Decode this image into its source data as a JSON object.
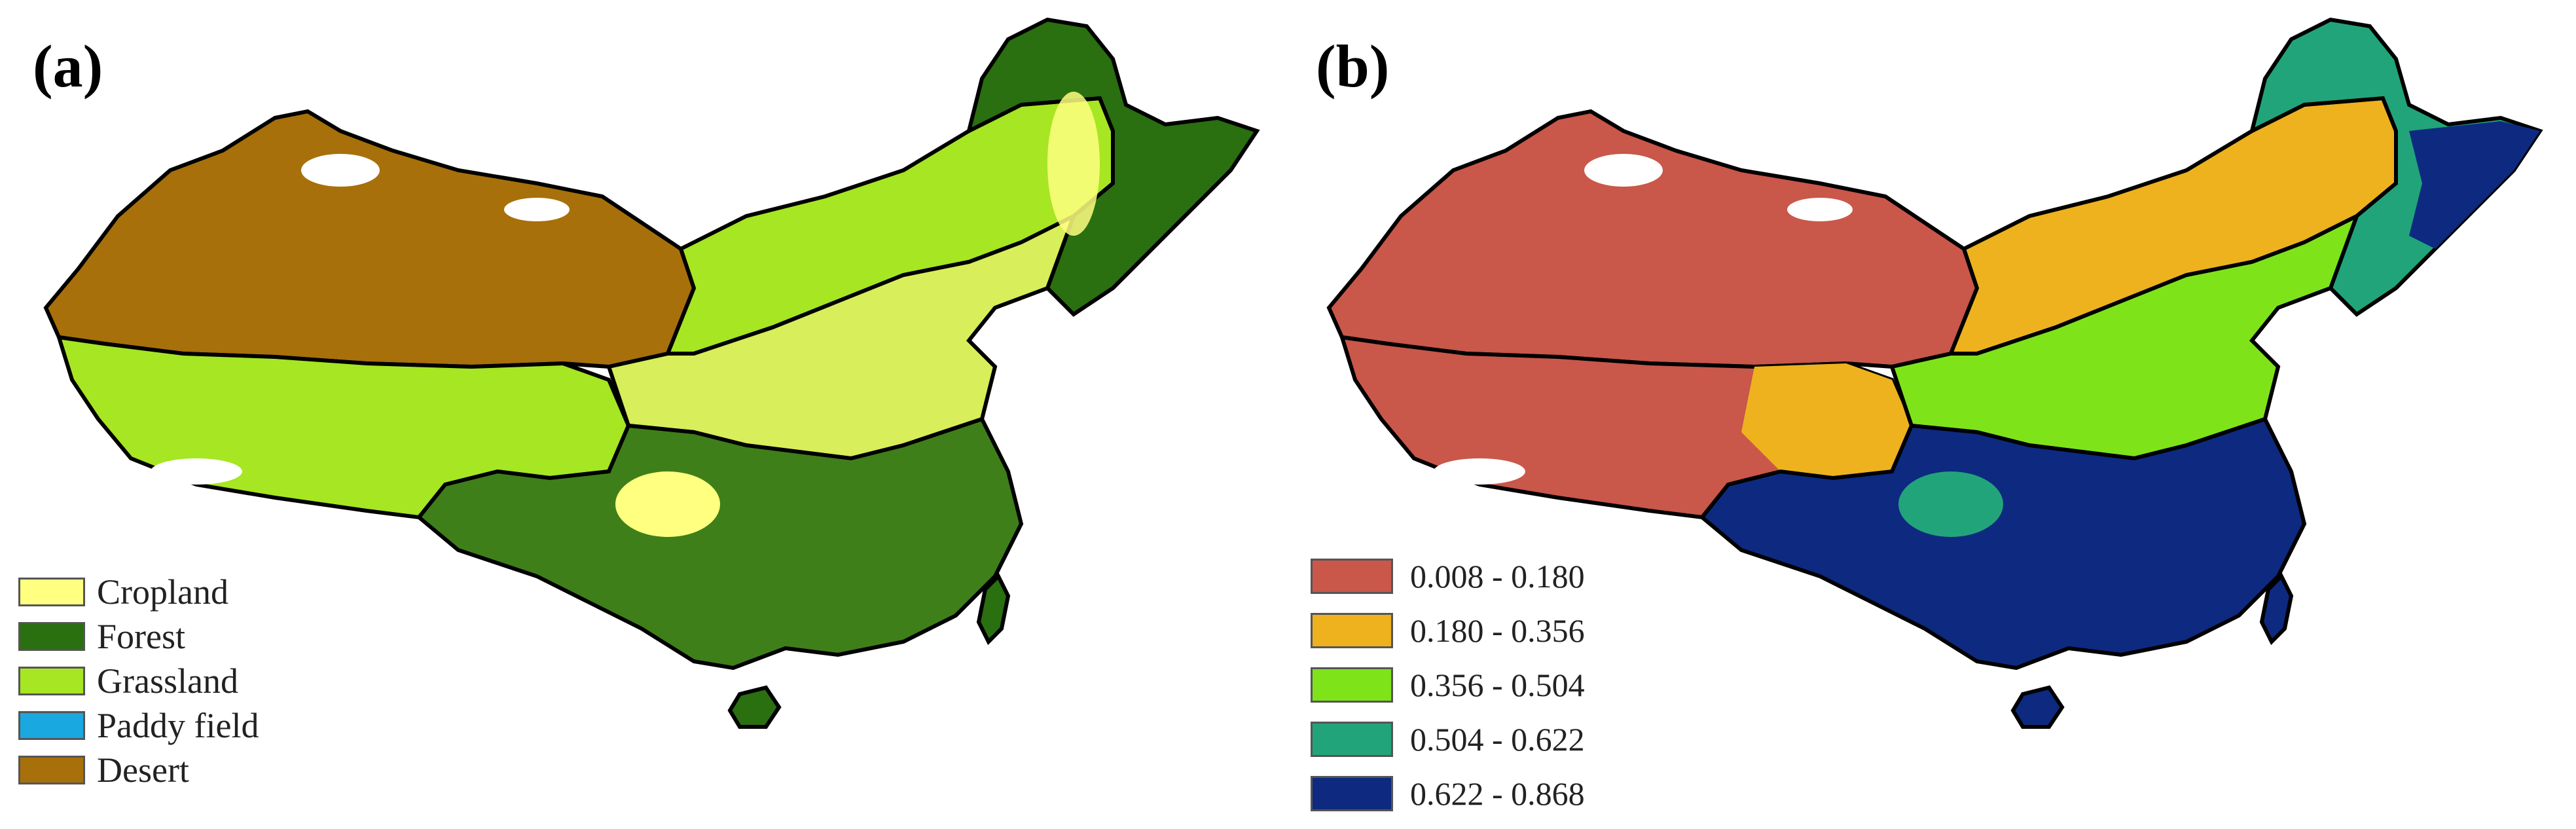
{
  "panels": [
    {
      "label": "(a)",
      "legend": [
        {
          "label": "Cropland",
          "color": "#ffff80"
        },
        {
          "label": "Forest",
          "color": "#2a6f10"
        },
        {
          "label": "Grassland",
          "color": "#a6e622"
        },
        {
          "label": "Paddy field",
          "color": "#1aa8e0"
        },
        {
          "label": "Desert",
          "color": "#a8700a"
        }
      ]
    },
    {
      "label": "(b)",
      "legend": [
        {
          "label": "0.008 - 0.180",
          "color": "#c9574a"
        },
        {
          "label": "0.180 - 0.356",
          "color": "#eeb21e"
        },
        {
          "label": "0.356 - 0.504",
          "color": "#7fe31a"
        },
        {
          "label": "0.504 - 0.622",
          "color": "#22a47a"
        },
        {
          "label": "0.622 - 0.868",
          "color": "#0d2a80"
        }
      ]
    }
  ]
}
